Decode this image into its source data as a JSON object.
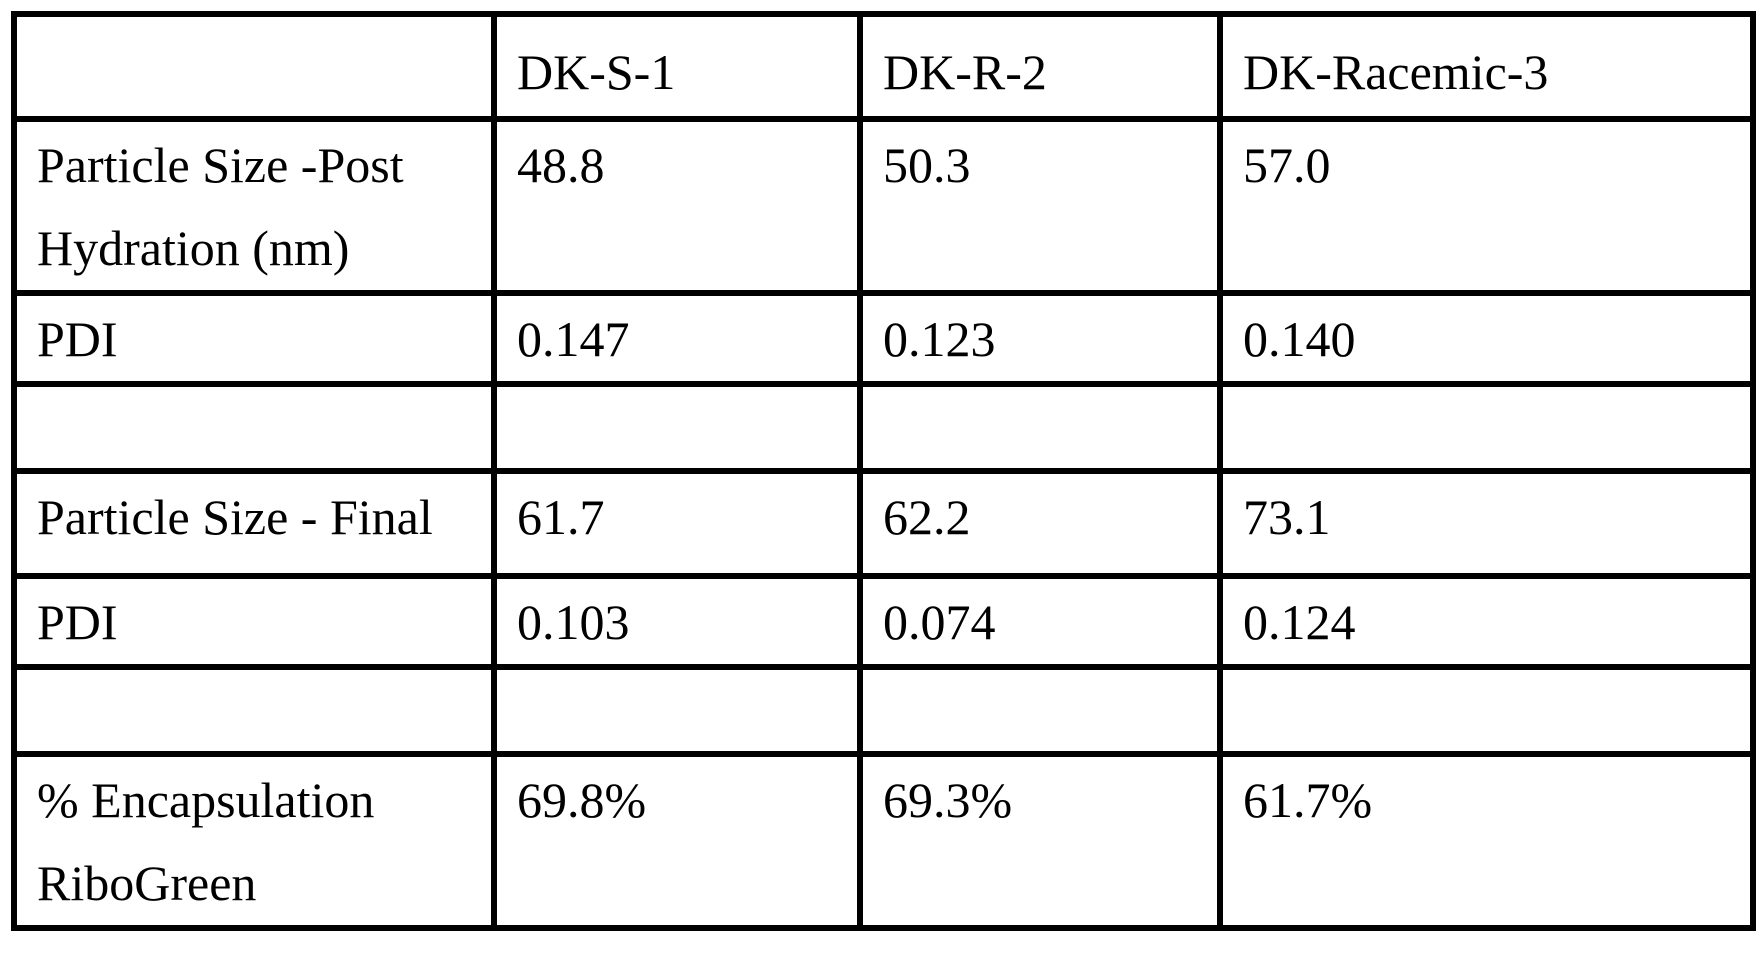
{
  "page": {
    "background_color": "#ffffff",
    "text_color": "#000000",
    "border_color": "#000000"
  },
  "table": {
    "header": {
      "col0": "",
      "col1": "DK-S-1",
      "col2": "DK-R-2",
      "col3": "DK-Racemic-3"
    },
    "rows": [
      {
        "label_line1": "Particle Size -Post",
        "label_line2": "Hydration (nm)",
        "v1": "48.8",
        "v2": "50.3",
        "v3": "57.0"
      },
      {
        "label_line1": "PDI",
        "v1": "0.147",
        "v2": "0.123",
        "v3": "0.140"
      },
      {
        "label_line1": "",
        "v1": "",
        "v2": "",
        "v3": ""
      },
      {
        "label_line1": "Particle Size - Final",
        "v1": "61.7",
        "v2": "62.2",
        "v3": "73.1"
      },
      {
        "label_line1": "PDI",
        "v1": "0.103",
        "v2": "0.074",
        "v3": "0.124"
      },
      {
        "label_line1": "",
        "v1": "",
        "v2": "",
        "v3": ""
      },
      {
        "label_line1": "% Encapsulation",
        "label_line2": "RiboGreen",
        "v1": "69.8%",
        "v2": "69.3%",
        "v3": "61.7%"
      }
    ]
  }
}
